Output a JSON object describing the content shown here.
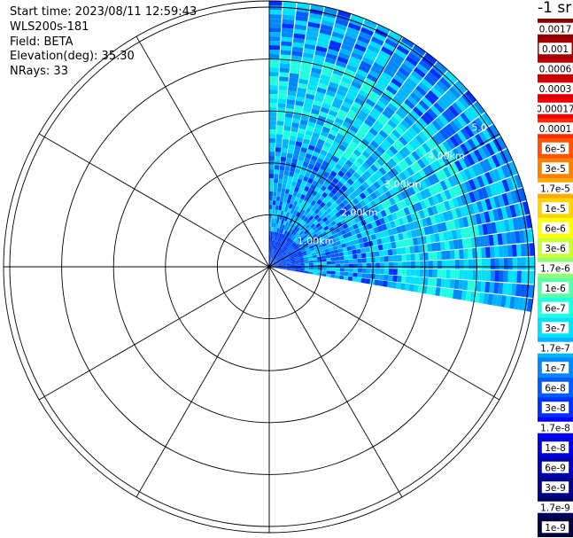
{
  "info": {
    "start_time": "Start time: 2023/08/11 12:59:43",
    "instrument": "WLS200s-181",
    "field": "Field: BETA",
    "elevation": "Elevation(deg): 35.30",
    "nrays": "NRays: 33"
  },
  "chart_data": {
    "type": "heatmap",
    "projection": "polar (PPI)",
    "range_rings": [
      "1.00km",
      "2.00km",
      "3.00km",
      "4.00km",
      "5.00km"
    ],
    "range_ring_labels_visible": [
      "1.00km",
      "2.00km",
      "3.00km",
      "4.00km",
      "5.0"
    ],
    "azimuth_lines_deg": [
      0,
      30,
      60,
      90,
      120,
      150,
      180,
      210,
      240,
      270,
      300,
      330
    ],
    "sector_deg": [
      0,
      100
    ],
    "ray_count": 33,
    "value_field": "BETA",
    "unit_label": "-1 sr",
    "colorbar": {
      "labels": [
        "0.0017",
        "0.001",
        "0.0006",
        "0.0003",
        "0.00017",
        "0.0001",
        "6e-5",
        "3e-5",
        "1.7e-5",
        "1e-5",
        "6e-6",
        "3e-6",
        "1.7e-6",
        "1e-6",
        "6e-7",
        "3e-7",
        "1.7e-7",
        "1e-7",
        "6e-8",
        "3e-8",
        "1.7e-8",
        "1e-8",
        "6e-9",
        "3e-9",
        "1.7e-9",
        "1e-9"
      ],
      "colors": [
        "#8b0000",
        "#a50000",
        "#c00000",
        "#dc0000",
        "#f00000",
        "#ff2a00",
        "#ff5500",
        "#ff8000",
        "#ffaa00",
        "#ffd400",
        "#ffff00",
        "#c8ff36",
        "#90ff70",
        "#58ffa8",
        "#20ffe0",
        "#00e0ff",
        "#00b4ff",
        "#0088ff",
        "#005cff",
        "#0030ff",
        "#0000ff",
        "#0000d8",
        "#0000b0",
        "#000088",
        "#000060",
        "#000040"
      ]
    }
  }
}
